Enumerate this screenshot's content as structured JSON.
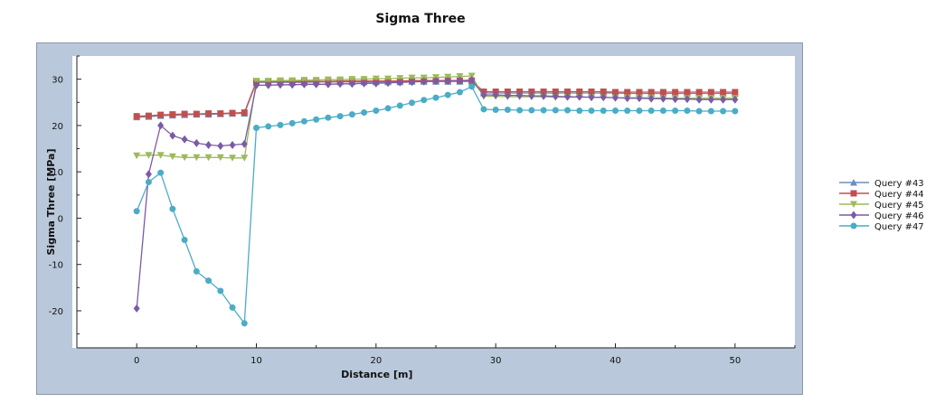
{
  "chart_data": {
    "type": "line",
    "title": "Sigma Three",
    "xlabel": "Distance [m]",
    "ylabel": "Sigma Three [MPa]",
    "xlim": [
      -5,
      55
    ],
    "ylim": [
      -28,
      35
    ],
    "xticks": [
      0,
      10,
      20,
      30,
      40,
      50
    ],
    "yticks": [
      -20,
      -10,
      0,
      10,
      20,
      30
    ],
    "grid": false,
    "legend_position": "right",
    "series": [
      {
        "name": "Query #43",
        "color": "#6c8ebf",
        "marker": "triangle-up",
        "x": [
          0,
          1,
          2,
          3,
          4,
          5,
          6,
          7,
          8,
          9,
          10,
          11,
          12,
          13,
          14,
          15,
          16,
          17,
          18,
          19,
          20,
          21,
          22,
          23,
          24,
          25,
          26,
          27,
          28,
          29,
          30,
          31,
          32,
          33,
          34,
          35,
          36,
          37,
          38,
          39,
          40,
          41,
          42,
          43,
          44,
          45,
          46,
          47,
          48,
          49,
          50
        ],
        "y": [
          21.8,
          21.9,
          22.1,
          22.2,
          22.3,
          22.4,
          22.4,
          22.5,
          22.6,
          22.6,
          29.3,
          29.3,
          29.3,
          29.3,
          29.3,
          29.4,
          29.4,
          29.4,
          29.4,
          29.4,
          29.4,
          29.4,
          29.4,
          29.5,
          29.5,
          29.5,
          29.5,
          29.5,
          29.5,
          27.0,
          27.0,
          27.0,
          27.0,
          27.0,
          27.0,
          27.0,
          27.0,
          27.0,
          27.0,
          27.0,
          27.0,
          26.9,
          26.9,
          26.9,
          26.9,
          26.9,
          26.9,
          26.9,
          26.9,
          26.9,
          26.9
        ]
      },
      {
        "name": "Query #44",
        "color": "#c0504d",
        "marker": "square",
        "x": [
          0,
          1,
          2,
          3,
          4,
          5,
          6,
          7,
          8,
          9,
          10,
          11,
          12,
          13,
          14,
          15,
          16,
          17,
          18,
          19,
          20,
          21,
          22,
          23,
          24,
          25,
          26,
          27,
          28,
          29,
          30,
          31,
          32,
          33,
          34,
          35,
          36,
          37,
          38,
          39,
          40,
          41,
          42,
          43,
          44,
          45,
          46,
          47,
          48,
          49,
          50
        ],
        "y": [
          22.0,
          22.1,
          22.3,
          22.4,
          22.5,
          22.5,
          22.6,
          22.6,
          22.7,
          22.8,
          29.5,
          29.5,
          29.5,
          29.5,
          29.5,
          29.5,
          29.5,
          29.6,
          29.6,
          29.6,
          29.6,
          29.6,
          29.6,
          29.7,
          29.7,
          29.7,
          29.7,
          29.7,
          29.7,
          27.3,
          27.3,
          27.3,
          27.3,
          27.3,
          27.3,
          27.3,
          27.3,
          27.3,
          27.3,
          27.3,
          27.2,
          27.2,
          27.2,
          27.2,
          27.2,
          27.2,
          27.2,
          27.2,
          27.2,
          27.2,
          27.2
        ]
      },
      {
        "name": "Query #45",
        "color": "#9bbb59",
        "marker": "triangle-down",
        "x": [
          0,
          1,
          2,
          3,
          4,
          5,
          6,
          7,
          8,
          9,
          10,
          11,
          12,
          13,
          14,
          15,
          16,
          17,
          18,
          19,
          20,
          21,
          22,
          23,
          24,
          25,
          26,
          27,
          28,
          29,
          30,
          31,
          32,
          33,
          34,
          35,
          36,
          37,
          38,
          39,
          40,
          41,
          42,
          43,
          44,
          45,
          46,
          47,
          48,
          49,
          50
        ],
        "y": [
          13.5,
          13.6,
          13.6,
          13.3,
          13.1,
          13.1,
          13.1,
          13.1,
          13.0,
          13.0,
          29.6,
          29.6,
          29.7,
          29.7,
          29.8,
          29.8,
          29.9,
          29.9,
          30.0,
          30.0,
          30.1,
          30.1,
          30.2,
          30.3,
          30.3,
          30.4,
          30.5,
          30.6,
          30.7,
          26.3,
          26.3,
          26.2,
          26.2,
          26.2,
          26.2,
          26.1,
          26.1,
          26.1,
          26.1,
          26.0,
          26.0,
          26.0,
          26.0,
          26.0,
          25.9,
          25.9,
          25.9,
          25.9,
          25.9,
          25.9,
          25.9
        ]
      },
      {
        "name": "Query #46",
        "color": "#7b5aa6",
        "marker": "diamond",
        "x": [
          0,
          1,
          2,
          3,
          4,
          5,
          6,
          7,
          8,
          9,
          10,
          11,
          12,
          13,
          14,
          15,
          16,
          17,
          18,
          19,
          20,
          21,
          22,
          23,
          24,
          25,
          26,
          27,
          28,
          29,
          30,
          31,
          32,
          33,
          34,
          35,
          36,
          37,
          38,
          39,
          40,
          41,
          42,
          43,
          44,
          45,
          46,
          47,
          48,
          49,
          50
        ],
        "y": [
          -19.5,
          9.5,
          20.0,
          17.8,
          17.0,
          16.2,
          15.8,
          15.6,
          15.8,
          16.0,
          28.7,
          28.7,
          28.8,
          28.8,
          28.9,
          28.9,
          28.9,
          29.0,
          29.0,
          29.1,
          29.1,
          29.2,
          29.3,
          29.4,
          29.5,
          29.6,
          29.6,
          29.7,
          29.8,
          26.6,
          26.6,
          26.5,
          26.5,
          26.4,
          26.4,
          26.3,
          26.2,
          26.2,
          26.1,
          26.1,
          26.0,
          25.9,
          25.9,
          25.8,
          25.8,
          25.7,
          25.7,
          25.6,
          25.6,
          25.6,
          25.6
        ]
      },
      {
        "name": "Query #47",
        "color": "#4bacc6",
        "marker": "circle",
        "x": [
          0,
          1,
          2,
          3,
          4,
          5,
          6,
          7,
          8,
          9,
          10,
          11,
          12,
          13,
          14,
          15,
          16,
          17,
          18,
          19,
          20,
          21,
          22,
          23,
          24,
          25,
          26,
          27,
          28,
          29,
          30,
          31,
          32,
          33,
          34,
          35,
          36,
          37,
          38,
          39,
          40,
          41,
          42,
          43,
          44,
          45,
          46,
          47,
          48,
          49,
          50
        ],
        "y": [
          1.5,
          7.8,
          9.8,
          2.0,
          -4.7,
          -11.5,
          -13.5,
          -15.7,
          -19.3,
          -22.7,
          19.5,
          19.8,
          20.1,
          20.5,
          20.9,
          21.3,
          21.7,
          22.0,
          22.4,
          22.8,
          23.2,
          23.7,
          24.3,
          24.9,
          25.5,
          26.0,
          26.6,
          27.2,
          28.4,
          23.5,
          23.4,
          23.4,
          23.3,
          23.3,
          23.3,
          23.3,
          23.3,
          23.2,
          23.2,
          23.2,
          23.2,
          23.2,
          23.2,
          23.2,
          23.2,
          23.2,
          23.2,
          23.1,
          23.1,
          23.1,
          23.1
        ]
      }
    ]
  }
}
